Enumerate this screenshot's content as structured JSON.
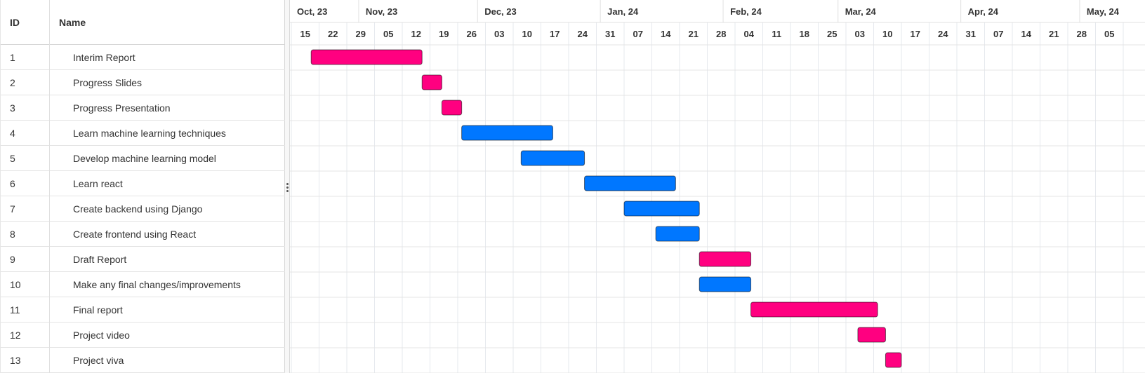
{
  "grid": {
    "id_header": "ID",
    "name_header": "Name"
  },
  "chart_data": {
    "type": "gantt",
    "months": [
      "Oct, 23",
      "Nov, 23",
      "Dec, 23",
      "Jan, 24",
      "Feb, 24",
      "Mar, 24",
      "Apr, 24",
      "May, 24"
    ],
    "weeks": [
      "2023-10-15",
      "2023-10-22",
      "2023-10-29",
      "2023-11-05",
      "2023-11-12",
      "2023-11-19",
      "2023-11-26",
      "2023-12-03",
      "2023-12-10",
      "2023-12-17",
      "2023-12-24",
      "2023-12-31",
      "2024-01-07",
      "2024-01-14",
      "2024-01-21",
      "2024-01-28",
      "2024-02-04",
      "2024-02-11",
      "2024-02-18",
      "2024-02-25",
      "2024-03-03",
      "2024-03-10",
      "2024-03-17",
      "2024-03-24",
      "2024-03-31",
      "2024-04-07",
      "2024-04-14",
      "2024-04-21",
      "2024-04-28",
      "2024-05-05"
    ],
    "week_labels": [
      "15",
      "22",
      "29",
      "05",
      "12",
      "19",
      "26",
      "03",
      "10",
      "17",
      "24",
      "31",
      "07",
      "14",
      "21",
      "28",
      "04",
      "11",
      "18",
      "25",
      "03",
      "10",
      "17",
      "24",
      "31",
      "07",
      "14",
      "21",
      "28",
      "05"
    ],
    "colors": {
      "pink": "#ff0080",
      "blue": "#0077ff"
    },
    "tasks": [
      {
        "id": "1",
        "name": "Interim Report",
        "start": "2023-10-20",
        "end": "2023-11-17",
        "color": "pink"
      },
      {
        "id": "2",
        "name": "Progress Slides",
        "start": "2023-11-17",
        "end": "2023-11-22",
        "color": "pink"
      },
      {
        "id": "3",
        "name": "Progress Presentation",
        "start": "2023-11-22",
        "end": "2023-11-27",
        "color": "pink"
      },
      {
        "id": "4",
        "name": "Learn machine learning techniques",
        "start": "2023-11-27",
        "end": "2023-12-20",
        "color": "blue"
      },
      {
        "id": "5",
        "name": "Develop machine learning model",
        "start": "2023-12-12",
        "end": "2023-12-28",
        "color": "blue"
      },
      {
        "id": "6",
        "name": "Learn react",
        "start": "2023-12-28",
        "end": "2024-01-20",
        "color": "blue"
      },
      {
        "id": "7",
        "name": "Create backend using Django",
        "start": "2024-01-07",
        "end": "2024-01-26",
        "color": "blue"
      },
      {
        "id": "8",
        "name": "Create frontend using React",
        "start": "2024-01-15",
        "end": "2024-01-26",
        "color": "blue"
      },
      {
        "id": "9",
        "name": "Draft Report",
        "start": "2024-01-26",
        "end": "2024-02-08",
        "color": "pink"
      },
      {
        "id": "10",
        "name": "Make any final changes/improvements",
        "start": "2024-01-26",
        "end": "2024-02-08",
        "color": "blue"
      },
      {
        "id": "11",
        "name": "Final report",
        "start": "2024-02-08",
        "end": "2024-03-11",
        "color": "pink"
      },
      {
        "id": "12",
        "name": "Project video",
        "start": "2024-03-06",
        "end": "2024-03-13",
        "color": "pink"
      },
      {
        "id": "13",
        "name": "Project viva",
        "start": "2024-03-13",
        "end": "2024-03-17",
        "color": "pink"
      }
    ]
  }
}
